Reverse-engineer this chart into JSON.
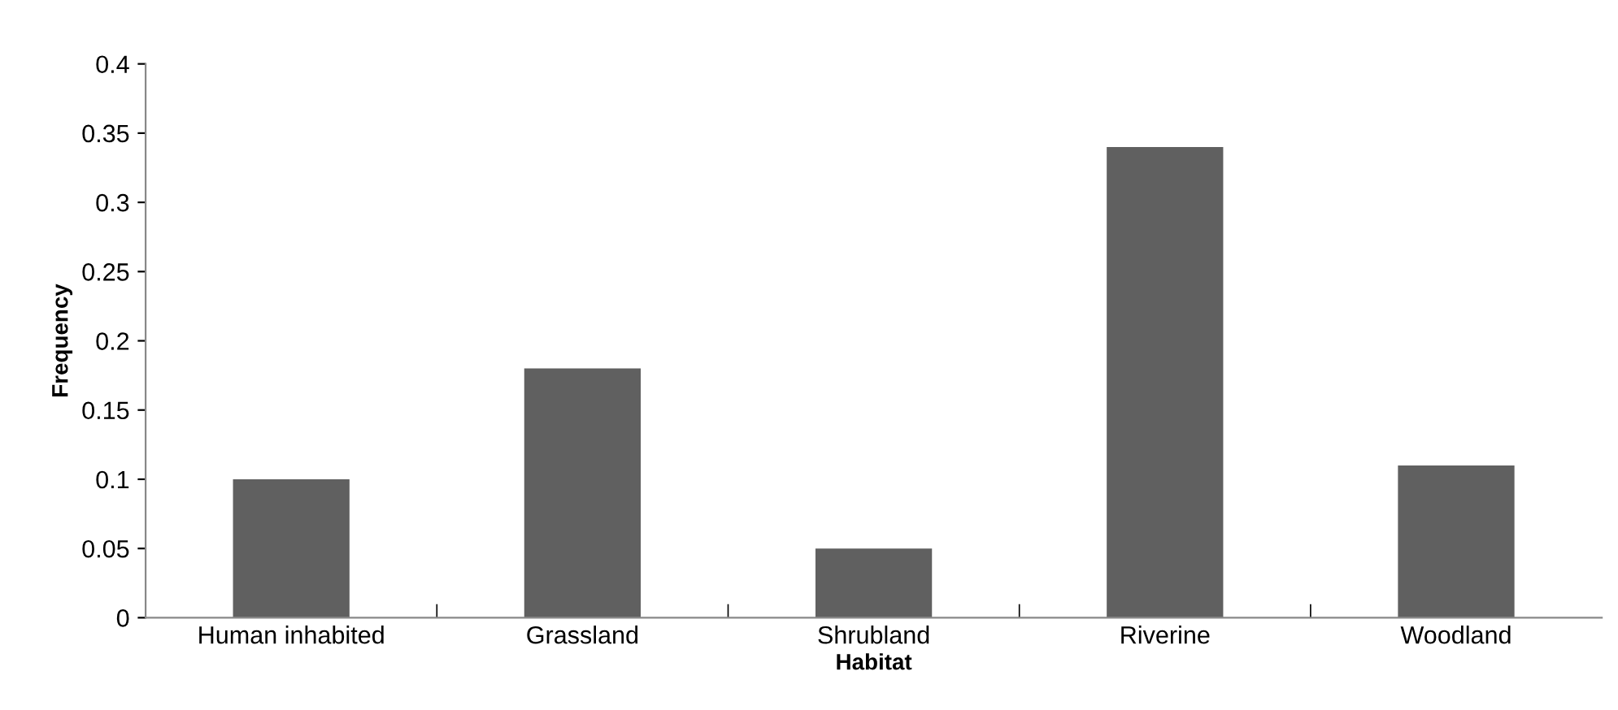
{
  "chart_data": {
    "type": "bar",
    "xlabel": "Habitat",
    "ylabel": "Frequency",
    "categories": [
      "Human inhabited",
      "Grassland",
      "Shrubland",
      "Riverine",
      "Woodland"
    ],
    "values": [
      0.1,
      0.18,
      0.05,
      0.34,
      0.11
    ],
    "color": "#606060",
    "ylim": [
      0,
      0.4
    ],
    "yticks": [
      0,
      0.05,
      0.1,
      0.15,
      0.2,
      0.25,
      0.3,
      0.35,
      0.4
    ],
    "grid": false,
    "legend": false
  }
}
